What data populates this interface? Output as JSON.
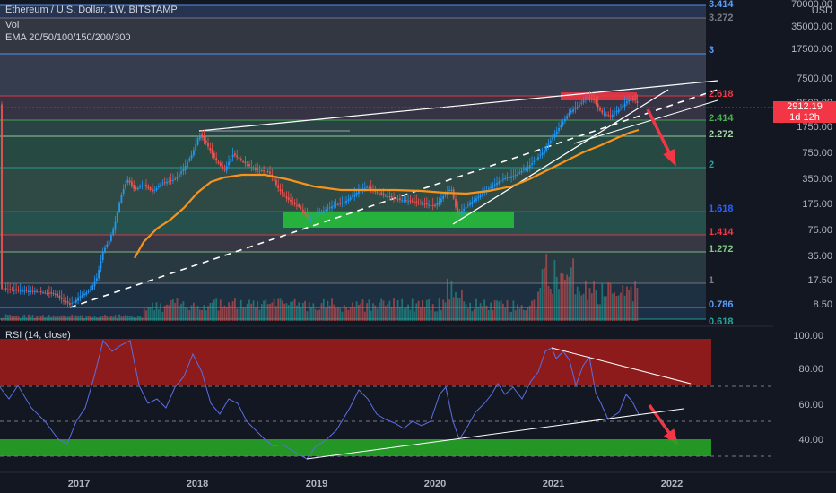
{
  "header": {
    "symbol": "Ethereum / U.S. Dollar, 1W, BITSTAMP",
    "volume": "Vol",
    "ema": "EMA 20/50/100/150/200/300"
  },
  "price_axis": {
    "currency": "USD",
    "ticks": [
      "70000.00",
      "35000.00",
      "17500.00",
      "7500.00",
      "3500.00",
      "1750.00",
      "750.00",
      "350.00",
      "175.00",
      "75.00",
      "35.00",
      "17.50",
      "8.50"
    ],
    "last_price": "2912.19",
    "countdown": "1d 12h"
  },
  "fib_levels": [
    {
      "label": "3.414",
      "color": "#5b9cf6"
    },
    {
      "label": "3.272",
      "color": "#787b86"
    },
    {
      "label": "3",
      "color": "#5b9cf6"
    },
    {
      "label": "2.618",
      "color": "#f23645"
    },
    {
      "label": "2.414",
      "color": "#4caf50"
    },
    {
      "label": "2.272",
      "color": "#a5d6a7"
    },
    {
      "label": "2",
      "color": "#26a69a"
    },
    {
      "label": "1.618",
      "color": "#2962ff"
    },
    {
      "label": "1.414",
      "color": "#f23645"
    },
    {
      "label": "1.272",
      "color": "#81c784"
    },
    {
      "label": "1",
      "color": "#787b86"
    },
    {
      "label": "0.786",
      "color": "#5b9cf6"
    },
    {
      "label": "0.618",
      "color": "#26a69a"
    }
  ],
  "rsi": {
    "title": "RSI (14, close)",
    "ticks": [
      "100.00",
      "80.00",
      "60.00",
      "40.00"
    ]
  },
  "time_axis": [
    "2017",
    "2018",
    "2019",
    "2020",
    "2021",
    "2022"
  ],
  "colors": {
    "up": "#26a69a",
    "down": "#ef5350",
    "ema": "#f7931a",
    "rsi": "#5b6fe0",
    "bull_line": "#2196f3"
  }
}
